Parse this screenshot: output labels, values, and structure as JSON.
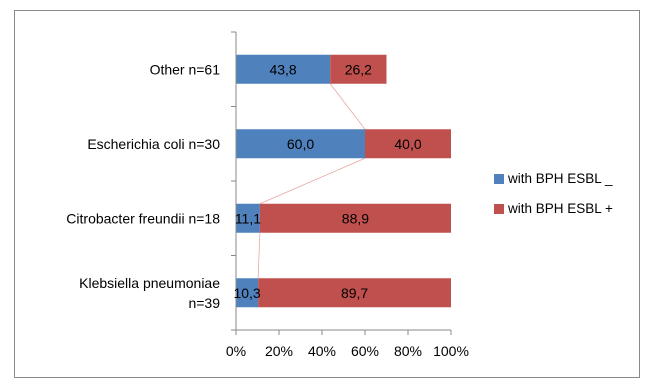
{
  "chart_data": {
    "type": "bar",
    "orientation": "horizontal",
    "stacked": true,
    "categories": [
      "Other n=61",
      "Escherichia coli n=30",
      "Citrobacter freundii n=18",
      "Klebsiella pneumoniae n=39"
    ],
    "category_lines": [
      [
        "Other n=61"
      ],
      [
        "Escherichia coli n=30"
      ],
      [
        "Citrobacter freundii n=18"
      ],
      [
        "Klebsiella pneumoniae",
        "n=39"
      ]
    ],
    "series": [
      {
        "name": "with BPH ESBL _",
        "color": "#4f81bd",
        "values": [
          43.8,
          60.0,
          11.1,
          10.3
        ],
        "labels": [
          "43,8",
          "60,0",
          "11,1",
          "10,3"
        ]
      },
      {
        "name": "with BPH ESBL +",
        "color": "#c0504d",
        "values": [
          26.2,
          40.0,
          88.9,
          89.7
        ],
        "labels": [
          "26,2",
          "40,0",
          "88,9",
          "89,7"
        ]
      }
    ],
    "xlim": [
      0,
      100
    ],
    "x_ticks": [
      "0%",
      "20%",
      "40%",
      "60%",
      "80%",
      "100%"
    ],
    "grid": false,
    "legend_position": "right"
  }
}
